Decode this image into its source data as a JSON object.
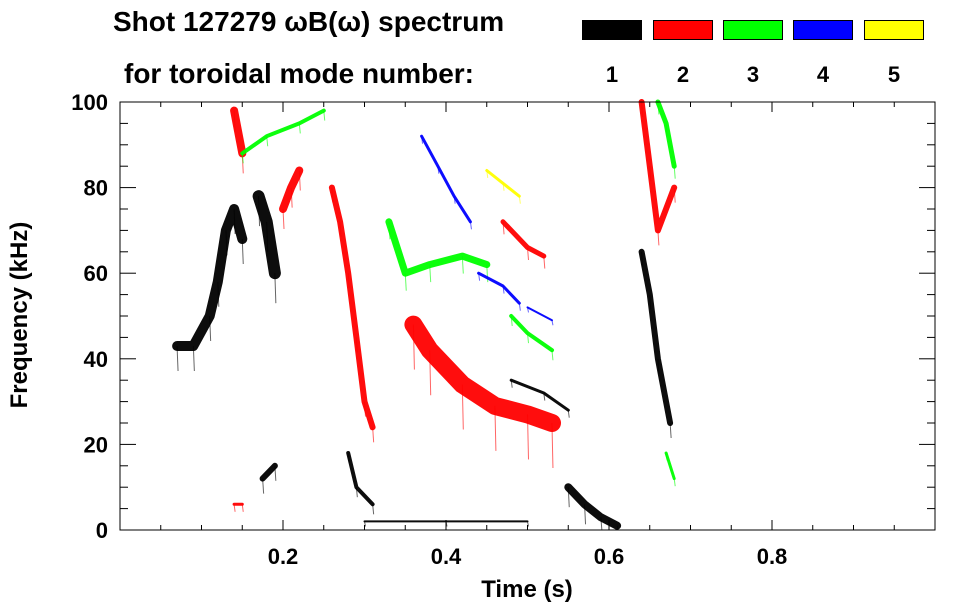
{
  "chart_data": {
    "type": "spectrogram",
    "title_line1": "Shot 127279 ωB(ω) spectrum",
    "title_line2": "for toroidal mode number:",
    "xlabel": "Time (s)",
    "ylabel": "Frequency (kHz)",
    "xlim": [
      0.0,
      1.0
    ],
    "ylim": [
      0,
      100
    ],
    "x_ticks": [
      "0.2",
      "0.4",
      "0.6",
      "0.8"
    ],
    "x_tick_values": [
      0.2,
      0.4,
      0.6,
      0.8
    ],
    "y_ticks": [
      "0",
      "20",
      "40",
      "60",
      "80",
      "100"
    ],
    "y_tick_values": [
      0,
      20,
      40,
      60,
      80,
      100
    ],
    "legend": [
      {
        "label": "1",
        "color": "#000000"
      },
      {
        "label": "2",
        "color": "#ff0000"
      },
      {
        "label": "3",
        "color": "#00ff00"
      },
      {
        "label": "4",
        "color": "#0000ff"
      },
      {
        "label": "5",
        "color": "#ffff00"
      }
    ],
    "series": [
      {
        "mode": "1",
        "color": "#000000",
        "kind": "band",
        "points": [
          [
            0.07,
            43
          ],
          [
            0.09,
            43
          ],
          [
            0.11,
            50
          ],
          [
            0.12,
            58
          ],
          [
            0.13,
            70
          ],
          [
            0.14,
            75
          ],
          [
            0.15,
            68
          ]
        ],
        "width": 10
      },
      {
        "mode": "1",
        "color": "#000000",
        "kind": "band",
        "points": [
          [
            0.17,
            78
          ],
          [
            0.18,
            72
          ],
          [
            0.19,
            60
          ]
        ],
        "width": 12
      },
      {
        "mode": "1",
        "color": "#000000",
        "kind": "band",
        "points": [
          [
            0.175,
            12
          ],
          [
            0.19,
            15
          ]
        ],
        "width": 6
      },
      {
        "mode": "1",
        "color": "#000000",
        "kind": "band",
        "points": [
          [
            0.28,
            18
          ],
          [
            0.29,
            10
          ],
          [
            0.31,
            6
          ]
        ],
        "width": 4
      },
      {
        "mode": "1",
        "color": "#000000",
        "kind": "band",
        "points": [
          [
            0.48,
            35
          ],
          [
            0.52,
            32
          ],
          [
            0.55,
            28
          ]
        ],
        "width": 3
      },
      {
        "mode": "1",
        "color": "#000000",
        "kind": "band",
        "points": [
          [
            0.55,
            10
          ],
          [
            0.57,
            6
          ],
          [
            0.59,
            3
          ],
          [
            0.61,
            1
          ]
        ],
        "width": 8
      },
      {
        "mode": "1",
        "color": "#000000",
        "kind": "band",
        "points": [
          [
            0.64,
            65
          ],
          [
            0.65,
            55
          ],
          [
            0.66,
            40
          ],
          [
            0.675,
            25
          ]
        ],
        "width": 6
      },
      {
        "mode": "1",
        "color": "#000000",
        "kind": "band",
        "points": [
          [
            0.3,
            2
          ],
          [
            0.4,
            2
          ],
          [
            0.5,
            2
          ]
        ],
        "width": 2
      },
      {
        "mode": "2",
        "color": "#ff0000",
        "kind": "band",
        "points": [
          [
            0.14,
            98
          ],
          [
            0.15,
            88
          ]
        ],
        "width": 8
      },
      {
        "mode": "2",
        "color": "#ff0000",
        "kind": "band",
        "points": [
          [
            0.2,
            75
          ],
          [
            0.21,
            80
          ],
          [
            0.22,
            84
          ]
        ],
        "width": 8
      },
      {
        "mode": "2",
        "color": "#ff0000",
        "kind": "band",
        "points": [
          [
            0.26,
            80
          ],
          [
            0.27,
            72
          ],
          [
            0.28,
            60
          ],
          [
            0.29,
            45
          ],
          [
            0.3,
            30
          ],
          [
            0.31,
            24
          ]
        ],
        "width": 6
      },
      {
        "mode": "2",
        "color": "#ff0000",
        "kind": "band",
        "points": [
          [
            0.36,
            48
          ],
          [
            0.38,
            42
          ],
          [
            0.42,
            34
          ],
          [
            0.46,
            29
          ],
          [
            0.5,
            27
          ],
          [
            0.53,
            25
          ]
        ],
        "width": 18
      },
      {
        "mode": "2",
        "color": "#ff0000",
        "kind": "band",
        "points": [
          [
            0.47,
            72
          ],
          [
            0.5,
            66
          ],
          [
            0.52,
            64
          ]
        ],
        "width": 5
      },
      {
        "mode": "2",
        "color": "#ff0000",
        "kind": "band",
        "points": [
          [
            0.64,
            100
          ],
          [
            0.65,
            85
          ],
          [
            0.66,
            70
          ],
          [
            0.68,
            80
          ]
        ],
        "width": 6
      },
      {
        "mode": "2",
        "color": "#ff0000",
        "kind": "band",
        "points": [
          [
            0.14,
            6
          ],
          [
            0.15,
            6
          ]
        ],
        "width": 3
      },
      {
        "mode": "3",
        "color": "#00ff00",
        "kind": "band",
        "points": [
          [
            0.15,
            88
          ],
          [
            0.18,
            92
          ],
          [
            0.22,
            95
          ],
          [
            0.25,
            98
          ]
        ],
        "width": 4
      },
      {
        "mode": "3",
        "color": "#00ff00",
        "kind": "band",
        "points": [
          [
            0.33,
            72
          ],
          [
            0.35,
            60
          ],
          [
            0.38,
            62
          ],
          [
            0.42,
            64
          ],
          [
            0.45,
            62
          ]
        ],
        "width": 7
      },
      {
        "mode": "3",
        "color": "#00ff00",
        "kind": "band",
        "points": [
          [
            0.48,
            50
          ],
          [
            0.5,
            46
          ],
          [
            0.53,
            42
          ]
        ],
        "width": 4
      },
      {
        "mode": "3",
        "color": "#00ff00",
        "kind": "band",
        "points": [
          [
            0.66,
            100
          ],
          [
            0.67,
            95
          ],
          [
            0.68,
            85
          ]
        ],
        "width": 5
      },
      {
        "mode": "3",
        "color": "#00ff00",
        "kind": "band",
        "points": [
          [
            0.67,
            18
          ],
          [
            0.68,
            12
          ]
        ],
        "width": 3
      },
      {
        "mode": "4",
        "color": "#0000ff",
        "kind": "band",
        "points": [
          [
            0.37,
            92
          ],
          [
            0.39,
            85
          ],
          [
            0.41,
            78
          ],
          [
            0.43,
            72
          ]
        ],
        "width": 3
      },
      {
        "mode": "4",
        "color": "#0000ff",
        "kind": "band",
        "points": [
          [
            0.44,
            60
          ],
          [
            0.47,
            57
          ],
          [
            0.49,
            53
          ]
        ],
        "width": 3
      },
      {
        "mode": "4",
        "color": "#0000ff",
        "kind": "band",
        "points": [
          [
            0.5,
            52
          ],
          [
            0.53,
            49
          ]
        ],
        "width": 2
      },
      {
        "mode": "5",
        "color": "#ffff00",
        "kind": "band",
        "points": [
          [
            0.45,
            84
          ],
          [
            0.47,
            81
          ],
          [
            0.49,
            78
          ]
        ],
        "width": 3
      }
    ]
  }
}
